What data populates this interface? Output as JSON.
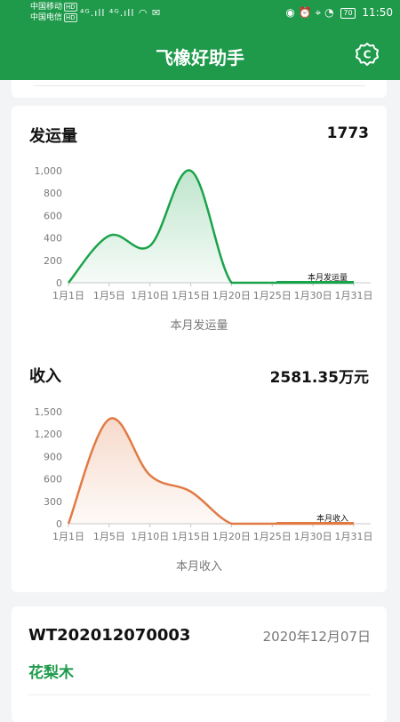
{
  "status_bar": {
    "carrier_1": "中国移动",
    "carrier_2": "中国电信",
    "hd": "HD",
    "signal": "⁴ᴳ.ıll ⁴ᴳ.ıll",
    "battery": "70",
    "time": "11:50"
  },
  "header": {
    "title": "飞橡好助手",
    "settings_icon": "settings-c-icon"
  },
  "shipment": {
    "title": "发运量",
    "total": "1773",
    "caption": "本月发运量",
    "legend": "本月发运量"
  },
  "income": {
    "title": "收入",
    "total": "2581.35万元",
    "caption": "本月收入",
    "legend": "本月收入"
  },
  "order": {
    "number": "WT202012070003",
    "date": "2020年12月07日",
    "goods": "花梨木"
  },
  "colors": {
    "brand_green": "#1f9a4b",
    "shipment_line": "#1aa34a",
    "income_line": "#e07b45"
  },
  "chart_data": [
    {
      "type": "area",
      "name": "shipment",
      "x": [
        "1月1日",
        "1月5日",
        "1月10日",
        "1月15日",
        "1月20日",
        "1月25日",
        "1月30日",
        "1月31日"
      ],
      "series": [
        {
          "name": "本月发运量",
          "values": [
            0,
            420,
            330,
            1000,
            0,
            0,
            0,
            0
          ]
        }
      ],
      "ylim": [
        0,
        1000
      ],
      "yticks": [
        "0",
        "200",
        "400",
        "600",
        "800",
        "1,000"
      ]
    },
    {
      "type": "area",
      "name": "income",
      "x": [
        "1月1日",
        "1月5日",
        "1月10日",
        "1月15日",
        "1月20日",
        "1月25日",
        "1月30日",
        "1月31日"
      ],
      "series": [
        {
          "name": "本月收入",
          "values": [
            0,
            1400,
            650,
            430,
            0,
            0,
            0,
            0
          ]
        }
      ],
      "ylim": [
        0,
        1500
      ],
      "yticks": [
        "0",
        "300",
        "600",
        "900",
        "1,200",
        "1,500"
      ]
    }
  ]
}
